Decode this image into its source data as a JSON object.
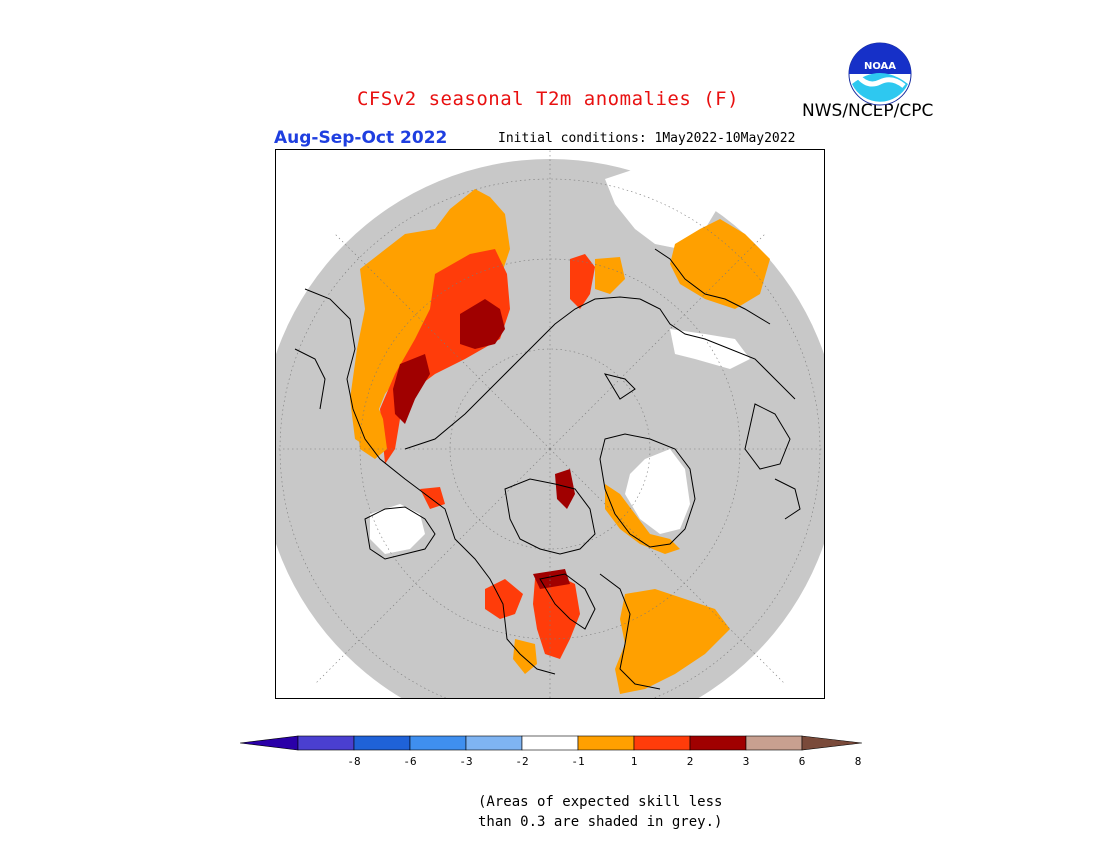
{
  "header": {
    "title": "CFSv2 seasonal T2m anomalies (F)",
    "organization": "NWS/NCEP/CPC",
    "logo_text": "NOAA",
    "season": "Aug-Sep-Oct 2022",
    "initial_conditions": "Initial conditions: 1May2022-10May2022"
  },
  "legend": {
    "labels": [
      "-8",
      "-6",
      "-3",
      "-2",
      "-1",
      "1",
      "2",
      "3",
      "6",
      "8"
    ],
    "colors": [
      "#2a00a8",
      "#4a3fd0",
      "#1f62d8",
      "#3f8fef",
      "#7fb4f2",
      "#ffffff",
      "#ffa000",
      "#ff3c0a",
      "#a00000",
      "#c8a090",
      "#7a4a3a"
    ]
  },
  "footnote": {
    "line1": "(Areas of expected skill less",
    "line2": "than 0.3 are shaded in grey.)"
  },
  "map": {
    "projection": "north-polar-stereographic",
    "background_color": "#c8c8c8",
    "grey_meaning": "skill less than 0.3"
  }
}
